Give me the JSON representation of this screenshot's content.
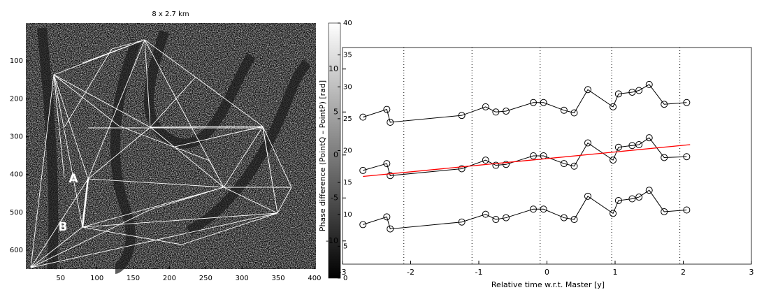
{
  "chart_data": [
    {
      "type": "image",
      "title": "8 x 2.7 km",
      "xlim": [
        2,
        402
      ],
      "ylim": [
        650,
        0
      ],
      "xticks": [
        50,
        100,
        150,
        200,
        250,
        300,
        350,
        400
      ],
      "yticks": [
        100,
        200,
        300,
        400,
        500,
        600
      ],
      "clim": [
        0,
        40
      ],
      "cticks": [
        0,
        5,
        10,
        15,
        20,
        25,
        30,
        35,
        40
      ],
      "annotations": [
        "A",
        "B"
      ]
    },
    {
      "type": "line",
      "xlabel": "Relative time w.r.t. Master [y]",
      "ylabel": "Phase difference (PointQ – PointP) [rad]",
      "xlim": [
        -3,
        3
      ],
      "ylim": [
        -12.7,
        12.5
      ],
      "xticks": [
        -3,
        -2,
        -1,
        0,
        1,
        2,
        3
      ],
      "yticks": [
        -10,
        -5,
        0,
        5,
        10
      ],
      "x": [
        -2.7,
        -2.35,
        -2.3,
        -1.25,
        -0.9,
        -0.75,
        -0.6,
        -0.2,
        -0.05,
        0.25,
        0.4,
        0.6,
        0.97,
        1.05,
        1.25,
        1.35,
        1.5,
        1.72,
        2.05
      ],
      "series": [
        {
          "color": "#000000",
          "values": [
            4.4,
            5.3,
            3.8,
            4.6,
            5.6,
            5.0,
            5.1,
            6.1,
            6.1,
            5.2,
            4.9,
            7.6,
            5.6,
            7.1,
            7.3,
            7.5,
            8.2,
            5.9,
            6.1
          ]
        },
        {
          "color": "#000000",
          "values": [
            -1.8,
            -1.0,
            -2.4,
            -1.6,
            -0.6,
            -1.2,
            -1.1,
            -0.1,
            -0.1,
            -1.0,
            -1.3,
            1.4,
            -0.6,
            0.9,
            1.1,
            1.2,
            2.0,
            -0.3,
            -0.2
          ]
        },
        {
          "color": "#000000",
          "values": [
            -8.1,
            -7.2,
            -8.6,
            -7.8,
            -6.9,
            -7.5,
            -7.3,
            -6.3,
            -6.3,
            -7.3,
            -7.5,
            -4.8,
            -6.8,
            -5.3,
            -5.1,
            -4.9,
            -4.1,
            -6.6,
            -6.4
          ]
        }
      ],
      "trend": {
        "color": "#ff0000",
        "x": [
          -2.7,
          2.1
        ],
        "values": [
          -2.5,
          1.2
        ]
      },
      "vlines": [
        -2.1,
        -1.1,
        -0.1,
        0.95,
        1.95
      ]
    }
  ]
}
